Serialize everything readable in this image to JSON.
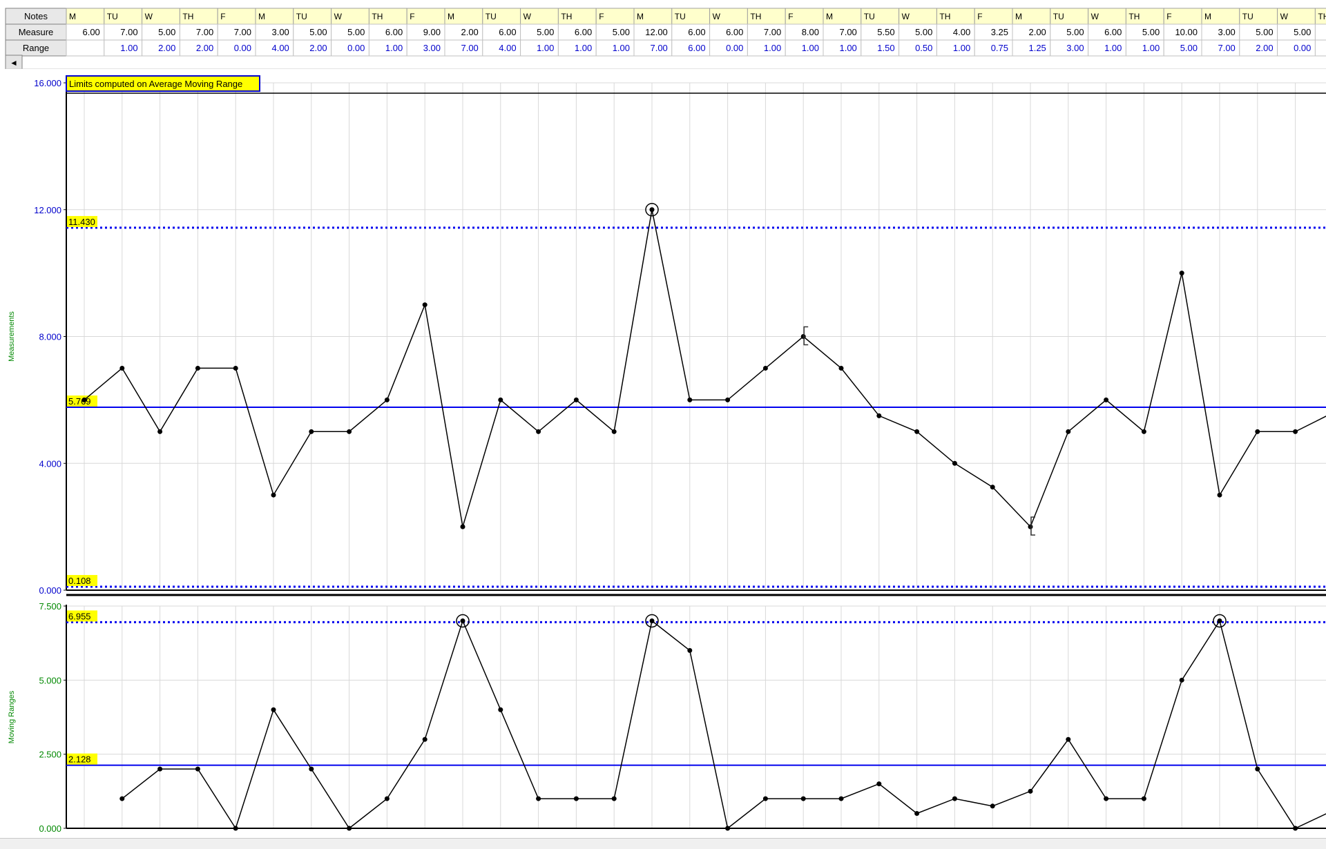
{
  "table": {
    "row_labels": {
      "notes": "Notes",
      "measure": "Measure",
      "range": "Range"
    },
    "scroll_arrow": "◄"
  },
  "colors": {
    "grid": "#d8d8d8",
    "axis": "#000000",
    "center_line": "#0000ee",
    "limit_line": "#0000ee",
    "data_line": "#000000",
    "tick_text": "#0000cc",
    "axis_title": "#008800",
    "label_bg": "#ffff00",
    "header_bg": "#ffffcc",
    "range_text": "#0000cc"
  },
  "chart_data": [
    {
      "type": "line",
      "title": "Limits computed on Average Moving Range",
      "ylabel": "Measurements",
      "ylim": [
        0,
        16
      ],
      "yticks": [
        "0.000",
        "4.000",
        "8.000",
        "12.000",
        "16.000"
      ],
      "categories": [
        "M",
        "TU",
        "W",
        "TH",
        "F",
        "M",
        "TU",
        "W",
        "TH",
        "F",
        "M",
        "TU",
        "W",
        "TH",
        "F",
        "M",
        "TU",
        "W",
        "TH",
        "F",
        "M",
        "TU",
        "W",
        "TH",
        "F",
        "M",
        "TU",
        "W",
        "TH",
        "F",
        "M",
        "TU",
        "W",
        "TH"
      ],
      "values": [
        6.0,
        7.0,
        5.0,
        7.0,
        7.0,
        3.0,
        5.0,
        5.0,
        6.0,
        9.0,
        2.0,
        6.0,
        5.0,
        6.0,
        5.0,
        12.0,
        6.0,
        6.0,
        7.0,
        8.0,
        7.0,
        5.5,
        5.0,
        4.0,
        3.25,
        2.0,
        5.0,
        6.0,
        5.0,
        10.0,
        3.0,
        5.0,
        5.0,
        5.6
      ],
      "display_values": [
        "6.00",
        "7.00",
        "5.00",
        "7.00",
        "7.00",
        "3.00",
        "5.00",
        "5.00",
        "6.00",
        "9.00",
        "2.00",
        "6.00",
        "5.00",
        "6.00",
        "5.00",
        "12.00",
        "6.00",
        "6.00",
        "7.00",
        "8.00",
        "7.00",
        "5.50",
        "5.00",
        "4.00",
        "3.25",
        "2.00",
        "5.00",
        "6.00",
        "5.00",
        "10.00",
        "3.00",
        "5.00",
        "5.00",
        ""
      ],
      "center_line": {
        "value": 5.769,
        "label": "5.769"
      },
      "ucl": {
        "value": 11.43,
        "label": "11.430"
      },
      "lcl": {
        "value": 0.108,
        "label": "0.108"
      },
      "flagged_points": [
        15
      ],
      "bracket_points": [
        19,
        25
      ]
    },
    {
      "type": "line",
      "ylabel": "Moving Ranges",
      "ylim": [
        0,
        7.5
      ],
      "yticks": [
        "0.000",
        "2.500",
        "5.000",
        "7.500"
      ],
      "values": [
        null,
        1.0,
        2.0,
        2.0,
        0.0,
        4.0,
        2.0,
        0.0,
        1.0,
        3.0,
        7.0,
        4.0,
        1.0,
        1.0,
        1.0,
        7.0,
        6.0,
        0.0,
        1.0,
        1.0,
        1.0,
        1.5,
        0.5,
        1.0,
        0.75,
        1.25,
        3.0,
        1.0,
        1.0,
        5.0,
        7.0,
        2.0,
        0.0,
        0.6
      ],
      "display_values": [
        "",
        "1.00",
        "2.00",
        "2.00",
        "0.00",
        "4.00",
        "2.00",
        "0.00",
        "1.00",
        "3.00",
        "7.00",
        "4.00",
        "1.00",
        "1.00",
        "1.00",
        "7.00",
        "6.00",
        "0.00",
        "1.00",
        "1.00",
        "1.00",
        "1.50",
        "0.50",
        "1.00",
        "0.75",
        "1.25",
        "3.00",
        "1.00",
        "1.00",
        "5.00",
        "7.00",
        "2.00",
        "0.00",
        ""
      ],
      "center_line": {
        "value": 2.128,
        "label": "2.128"
      },
      "ucl": {
        "value": 6.955,
        "label": "6.955"
      },
      "flagged_points": [
        10,
        15,
        30
      ]
    }
  ]
}
